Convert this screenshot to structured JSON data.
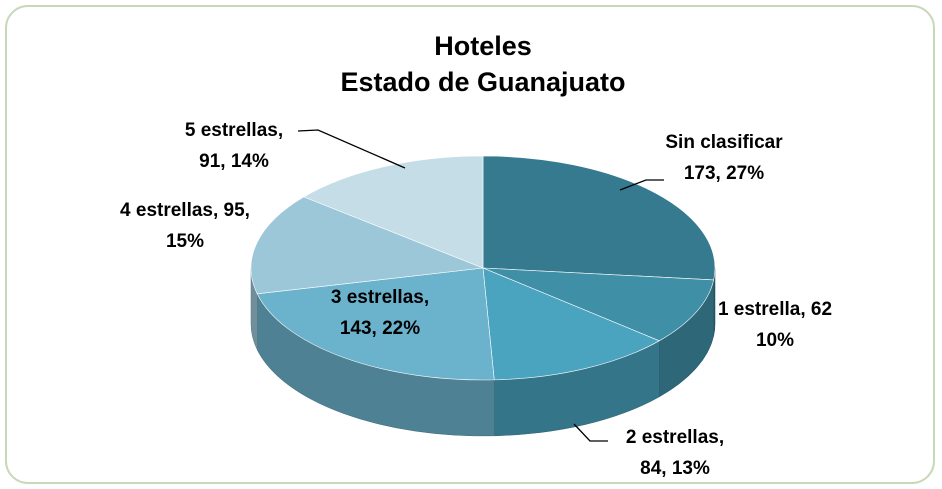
{
  "chart_data": {
    "type": "pie",
    "title": "Hoteles",
    "subtitle": "Estado de Guanajuato",
    "values": [
      173,
      62,
      84,
      143,
      95,
      91
    ],
    "value_labels": [
      [
        "Sin clasificar",
        "173, 27%"
      ],
      [
        "1 estrella, 62",
        "10%"
      ],
      [
        "2 estrellas,",
        "84, 13%"
      ],
      [
        "3 estrellas,",
        "143, 22%"
      ],
      [
        "4 estrellas, 95,",
        "15%"
      ],
      [
        "5 estrellas,",
        "91, 14%"
      ]
    ],
    "colors": [
      "#357a8f",
      "#3f8fa6",
      "#4aa3bf",
      "#6bb3cc",
      "#9cc7d8",
      "#c5dde6"
    ],
    "three_d": true
  }
}
